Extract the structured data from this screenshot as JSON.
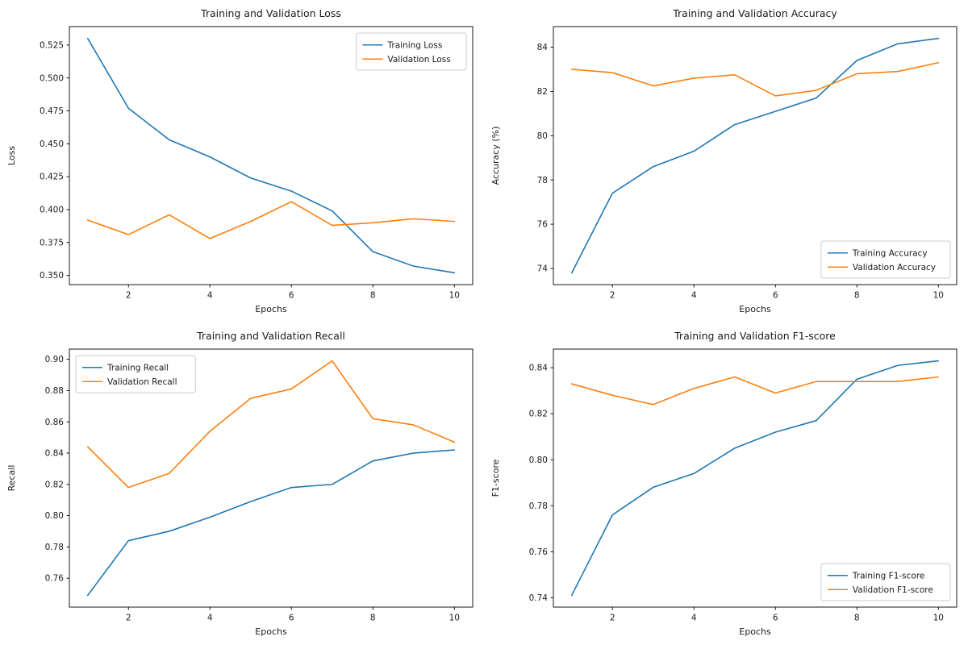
{
  "layout": {
    "rows": 2,
    "cols": 2,
    "background": "#ffffff"
  },
  "colors": {
    "training": "#1f77b4",
    "validation": "#ff7f0e",
    "spine": "#000000",
    "legend_edge": "#cccccc"
  },
  "chart_data": [
    {
      "type": "line",
      "title": "Training and Validation Loss",
      "xlabel": "Epochs",
      "ylabel": "Loss",
      "x": [
        1,
        2,
        3,
        4,
        5,
        6,
        7,
        8,
        9,
        10
      ],
      "series": [
        {
          "name": "Training Loss",
          "color": "#1f77b4",
          "values": [
            0.53,
            0.477,
            0.453,
            0.44,
            0.424,
            0.414,
            0.399,
            0.368,
            0.357,
            0.352
          ]
        },
        {
          "name": "Validation Loss",
          "color": "#ff7f0e",
          "values": [
            0.392,
            0.381,
            0.396,
            0.378,
            0.391,
            0.406,
            0.388,
            0.39,
            0.393,
            0.391
          ]
        }
      ],
      "xlim": [
        0.55,
        10.45
      ],
      "ylim": [
        0.343,
        0.539
      ],
      "xticks": [
        2,
        4,
        6,
        8,
        10
      ],
      "yticks": [
        0.35,
        0.375,
        0.4,
        0.425,
        0.45,
        0.475,
        0.5,
        0.525
      ],
      "ytick_decimals": 3,
      "legend_position": "upper-right",
      "grid": false
    },
    {
      "type": "line",
      "title": "Training and Validation Accuracy",
      "xlabel": "Epochs",
      "ylabel": "Accuracy (%)",
      "x": [
        1,
        2,
        3,
        4,
        5,
        6,
        7,
        8,
        9,
        10
      ],
      "series": [
        {
          "name": "Training Accuracy",
          "color": "#1f77b4",
          "values": [
            73.8,
            77.4,
            78.6,
            79.3,
            80.5,
            81.1,
            81.7,
            83.4,
            84.15,
            84.4
          ]
        },
        {
          "name": "Validation Accuracy",
          "color": "#ff7f0e",
          "values": [
            83.0,
            82.85,
            82.25,
            82.6,
            82.75,
            81.8,
            82.05,
            82.8,
            82.9,
            83.3
          ]
        }
      ],
      "xlim": [
        0.55,
        10.45
      ],
      "ylim": [
        73.27,
        84.93
      ],
      "xticks": [
        2,
        4,
        6,
        8,
        10
      ],
      "yticks": [
        74,
        76,
        78,
        80,
        82,
        84
      ],
      "ytick_decimals": 0,
      "legend_position": "lower-right",
      "grid": false
    },
    {
      "type": "line",
      "title": "Training and Validation Recall",
      "xlabel": "Epochs",
      "ylabel": "Recall",
      "x": [
        1,
        2,
        3,
        4,
        5,
        6,
        7,
        8,
        9,
        10
      ],
      "series": [
        {
          "name": "Training Recall",
          "color": "#1f77b4",
          "values": [
            0.749,
            0.784,
            0.79,
            0.799,
            0.809,
            0.818,
            0.82,
            0.835,
            0.84,
            0.842
          ]
        },
        {
          "name": "Validation Recall",
          "color": "#ff7f0e",
          "values": [
            0.844,
            0.818,
            0.827,
            0.854,
            0.875,
            0.881,
            0.899,
            0.862,
            0.858,
            0.847
          ]
        }
      ],
      "xlim": [
        0.55,
        10.45
      ],
      "ylim": [
        0.7415,
        0.9065
      ],
      "xticks": [
        2,
        4,
        6,
        8,
        10
      ],
      "yticks": [
        0.76,
        0.78,
        0.8,
        0.82,
        0.84,
        0.86,
        0.88,
        0.9
      ],
      "ytick_decimals": 2,
      "legend_position": "upper-left",
      "grid": false
    },
    {
      "type": "line",
      "title": "Training and Validation F1-score",
      "xlabel": "Epochs",
      "ylabel": "F1-score",
      "x": [
        1,
        2,
        3,
        4,
        5,
        6,
        7,
        8,
        9,
        10
      ],
      "series": [
        {
          "name": "Training F1-score",
          "color": "#1f77b4",
          "values": [
            0.741,
            0.776,
            0.788,
            0.794,
            0.805,
            0.812,
            0.817,
            0.835,
            0.841,
            0.843
          ]
        },
        {
          "name": "Validation F1-score",
          "color": "#ff7f0e",
          "values": [
            0.833,
            0.828,
            0.824,
            0.831,
            0.836,
            0.829,
            0.834,
            0.834,
            0.834,
            0.836
          ]
        }
      ],
      "xlim": [
        0.55,
        10.45
      ],
      "ylim": [
        0.7359,
        0.8481
      ],
      "xticks": [
        2,
        4,
        6,
        8,
        10
      ],
      "yticks": [
        0.74,
        0.76,
        0.78,
        0.8,
        0.82,
        0.84
      ],
      "ytick_decimals": 2,
      "legend_position": "lower-right",
      "grid": false
    }
  ]
}
